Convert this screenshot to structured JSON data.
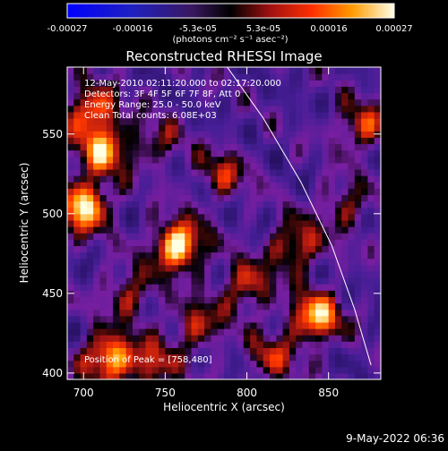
{
  "colorbar": {
    "tick_labels": [
      "-0.00027",
      "-0.00016",
      "-5.3e-05",
      "5.3e-05",
      "0.00016",
      "0.00027"
    ],
    "unit_label": "(photons cm⁻² s⁻¹ asec⁻²)",
    "range": [
      -0.00027,
      0.00027
    ]
  },
  "chart_data": {
    "type": "heatmap",
    "title": "Reconstructed RHESSI Image",
    "xlabel": "Heliocentric X (arcsec)",
    "ylabel": "Heliocentric Y (arcsec)",
    "xlim": [
      690,
      882
    ],
    "ylim": [
      396,
      592
    ],
    "x_ticks": [
      "700",
      "750",
      "800",
      "850"
    ],
    "y_ticks": [
      "400",
      "450",
      "500",
      "550"
    ],
    "x_tick_values": [
      700,
      750,
      800,
      850
    ],
    "y_tick_values": [
      400,
      450,
      500,
      550
    ],
    "annotations": [
      "12-May-2010 02:11:20.000 to 02:17:20.000",
      "Detectors: 3F 4F 5F 6F 7F 8F, Att 0",
      "Energy Range: 25.0 - 50.0 keV",
      "Clean     Total counts: 6.08E+03"
    ],
    "peak_label": "Position of Peak = [758,480]",
    "peak_position": [
      758,
      480
    ],
    "limb_curve": [
      [
        788,
        592
      ],
      [
        810,
        560
      ],
      [
        833,
        520
      ],
      [
        852,
        480
      ],
      [
        866,
        440
      ],
      [
        876,
        405
      ]
    ],
    "hot_spots": [
      {
        "x": 758,
        "y": 480,
        "level": 1.0
      },
      {
        "x": 700,
        "y": 505,
        "level": 0.95
      },
      {
        "x": 715,
        "y": 410,
        "level": 0.85
      },
      {
        "x": 842,
        "y": 435,
        "level": 0.85
      },
      {
        "x": 830,
        "y": 480,
        "level": 0.6
      },
      {
        "x": 712,
        "y": 540,
        "level": 0.75
      },
      {
        "x": 705,
        "y": 565,
        "level": 0.7
      },
      {
        "x": 800,
        "y": 455,
        "level": 0.55
      },
      {
        "x": 770,
        "y": 430,
        "level": 0.5
      },
      {
        "x": 728,
        "y": 450,
        "level": 0.45
      },
      {
        "x": 870,
        "y": 555,
        "level": 0.55
      },
      {
        "x": 860,
        "y": 505,
        "level": 0.4
      },
      {
        "x": 785,
        "y": 525,
        "level": 0.45
      },
      {
        "x": 745,
        "y": 545,
        "level": 0.35
      },
      {
        "x": 815,
        "y": 410,
        "level": 0.45
      },
      {
        "x": 742,
        "y": 405,
        "level": 0.5
      }
    ]
  },
  "footer": {
    "timestamp": "9-May-2022 06:36"
  }
}
